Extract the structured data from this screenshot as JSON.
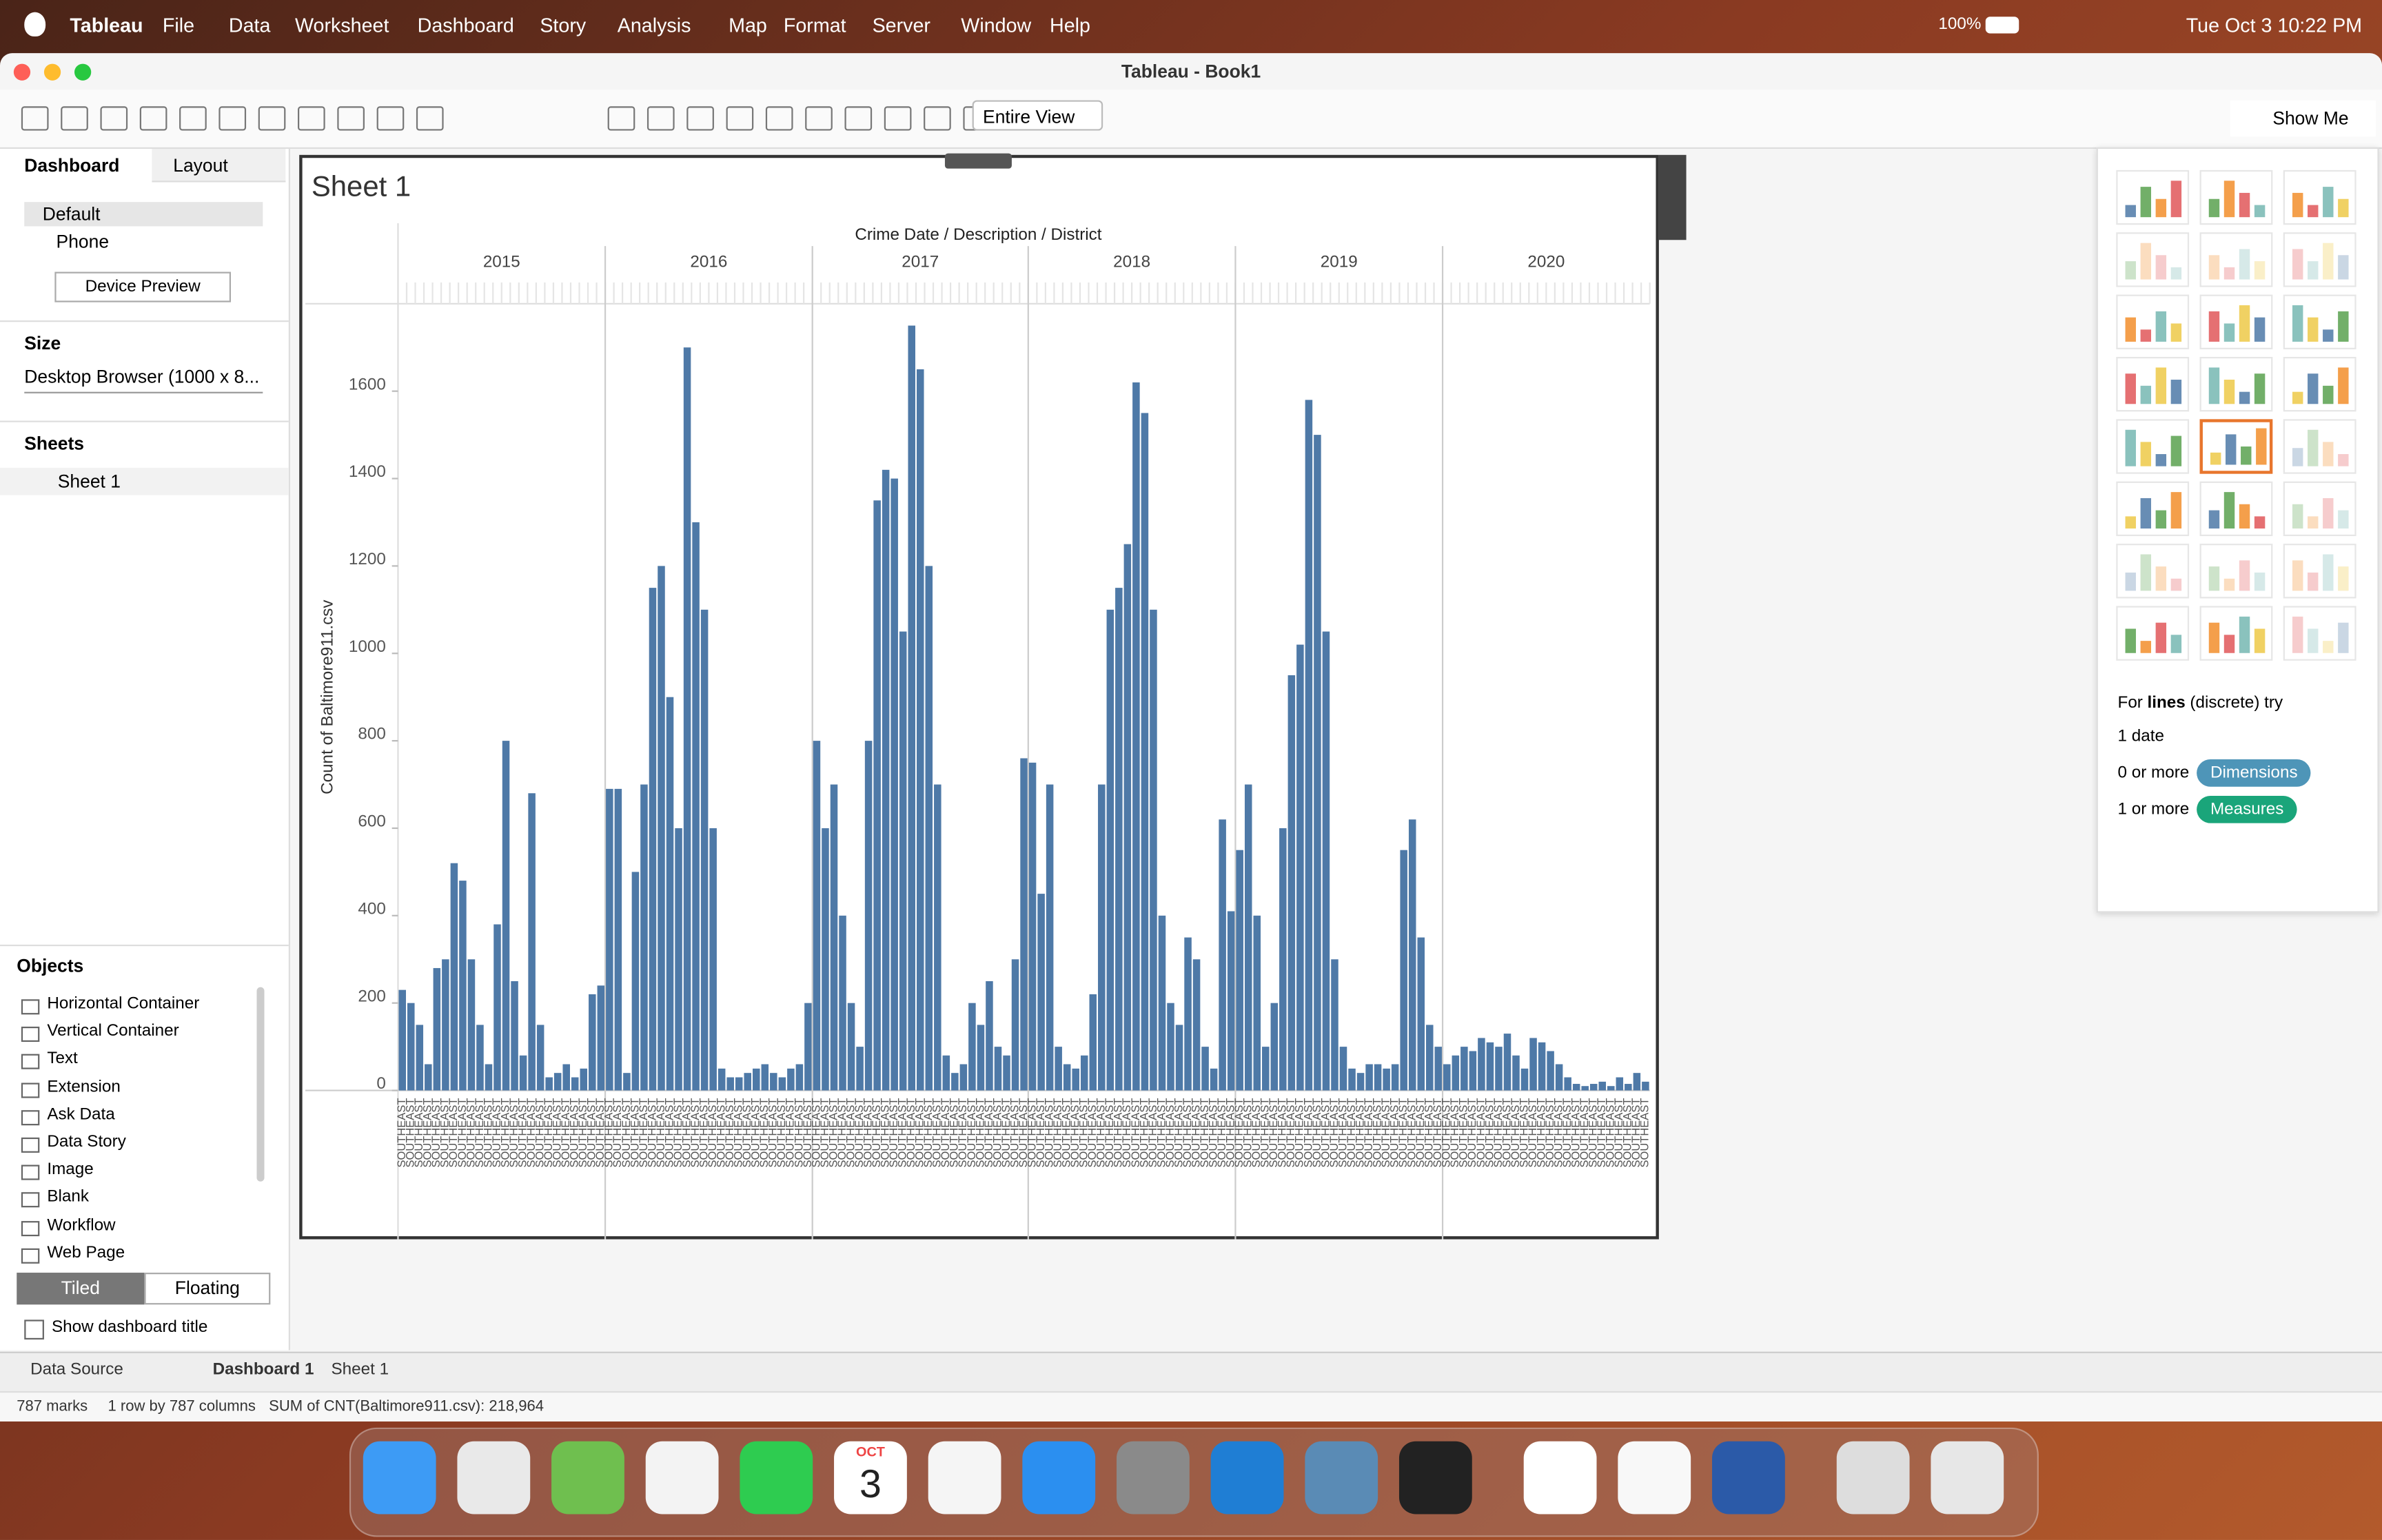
{
  "menu_bar": {
    "app": "Tableau",
    "items": [
      "File",
      "Data",
      "Worksheet",
      "Dashboard",
      "Story",
      "Analysis",
      "Map",
      "Format",
      "Server",
      "Window",
      "Help"
    ],
    "battery": "100%",
    "datetime": "Tue Oct 3  10:22 PM"
  },
  "window": {
    "title": "Tableau - Book1"
  },
  "toolbar": {
    "view_select": "Entire View",
    "show_me": "Show Me"
  },
  "left_panel": {
    "tabs": [
      "Dashboard",
      "Layout"
    ],
    "device_options": [
      "Default",
      "Phone"
    ],
    "device_preview": "Device Preview",
    "size_heading": "Size",
    "size_value": "Desktop Browser (1000 x 8...",
    "sheets_heading": "Sheets",
    "sheets": [
      "Sheet 1"
    ],
    "objects_heading": "Objects",
    "objects": [
      "Horizontal Container",
      "Vertical Container",
      "Text",
      "Extension",
      "Ask Data",
      "Data Story",
      "Image",
      "Blank",
      "Workflow",
      "Web Page"
    ],
    "layout_modes": [
      "Tiled",
      "Floating"
    ],
    "show_title": "Show dashboard title"
  },
  "sheet_title": "Sheet 1",
  "chart_data": {
    "type": "bar",
    "title": "Crime Date / Description / District",
    "y_label": "Count of Baltimore911.csv",
    "district": "SOUTHEAST",
    "color": "#4e79a7",
    "ylim": [
      0,
      1800
    ],
    "yticks": [
      0,
      200,
      400,
      600,
      800,
      1000,
      1200,
      1400,
      1600
    ],
    "groups": [
      {
        "label": "2015",
        "values": [
          230,
          200,
          150,
          60,
          280,
          300,
          520,
          480,
          300,
          150,
          60,
          380,
          800,
          250,
          80,
          680,
          150,
          30,
          40,
          60,
          30,
          50,
          220,
          240
        ]
      },
      {
        "label": "2016",
        "values": [
          690,
          690,
          40,
          500,
          700,
          1150,
          1200,
          900,
          600,
          1700,
          1300,
          1100,
          600,
          50,
          30,
          30,
          40,
          50,
          60,
          40,
          30,
          50,
          60,
          200
        ]
      },
      {
        "label": "2017",
        "values": [
          800,
          600,
          700,
          400,
          200,
          100,
          800,
          1350,
          1420,
          1400,
          1050,
          1750,
          1650,
          1200,
          700,
          80,
          40,
          60,
          200,
          150,
          250,
          100,
          80,
          300,
          760
        ]
      },
      {
        "label": "2018",
        "values": [
          750,
          450,
          700,
          100,
          60,
          50,
          80,
          220,
          700,
          1100,
          1150,
          1250,
          1620,
          1550,
          1100,
          400,
          200,
          150,
          350,
          300,
          100,
          50,
          620,
          410
        ]
      },
      {
        "label": "2019",
        "values": [
          550,
          700,
          400,
          100,
          200,
          600,
          950,
          1020,
          1580,
          1500,
          1050,
          300,
          100,
          50,
          40,
          60,
          60,
          50,
          60,
          550,
          620,
          350,
          150,
          100
        ]
      },
      {
        "label": "2020",
        "values": [
          60,
          80,
          100,
          90,
          120,
          110,
          100,
          130,
          80,
          50,
          120,
          110,
          90,
          60,
          30,
          15,
          10,
          15,
          20,
          10,
          30,
          15,
          40,
          20
        ]
      }
    ]
  },
  "show_me": {
    "hint_prefix": "For",
    "hint_bold": "lines",
    "hint_suffix": "(discrete) try",
    "requirements": [
      {
        "text": "1 date"
      },
      {
        "text": "0 or more",
        "pill": "Dimensions"
      },
      {
        "text": "1 or more",
        "pill": "Measures"
      }
    ]
  },
  "tabs": [
    "Data Source",
    "Dashboard 1",
    "Sheet 1"
  ],
  "status": [
    "787 marks",
    "1 row by 787 columns",
    "SUM of CNT(Baltimore911.csv): 218,964"
  ],
  "dock": {
    "calendar_month": "OCT",
    "calendar_day": "3"
  }
}
